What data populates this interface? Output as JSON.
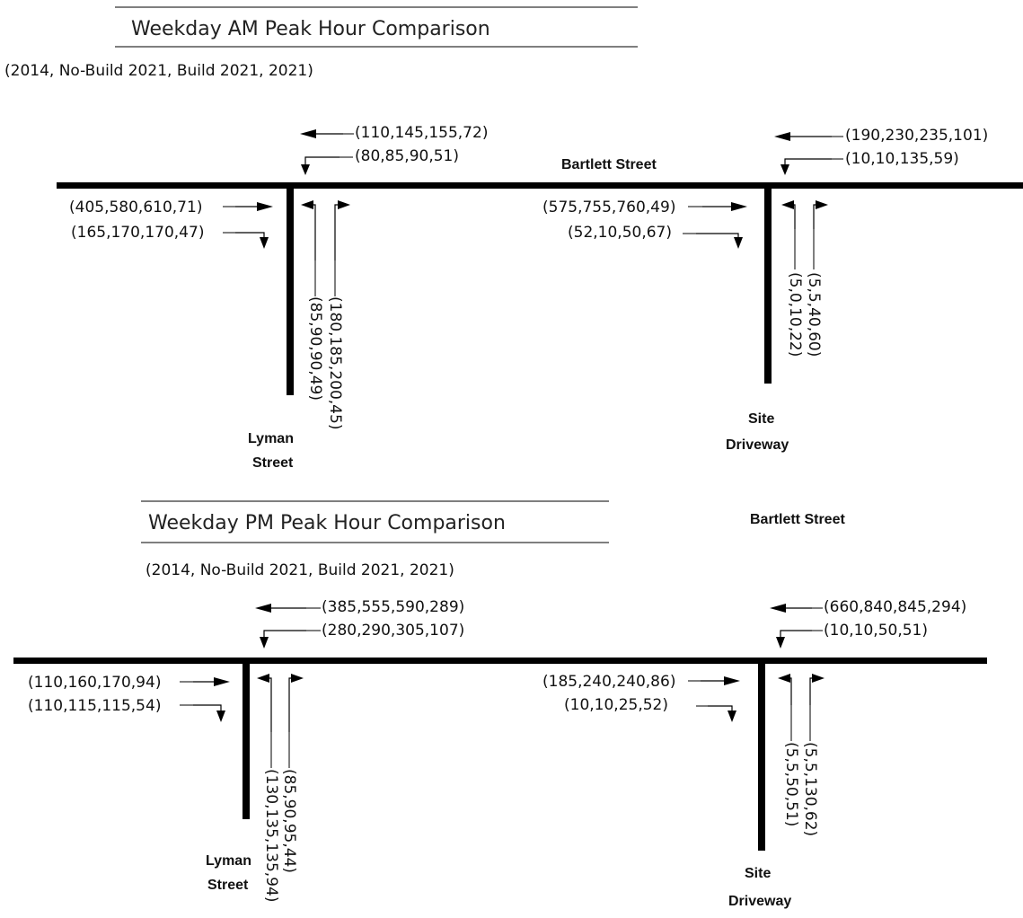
{
  "am": {
    "title": "Weekday AM Peak Hour Comparison",
    "subtitle": "(2014, No-Build 2021, Build 2021, 2021)",
    "main_street": "Bartlett Street",
    "lyman_street": [
      "Lyman",
      "Street"
    ],
    "site_driveway": [
      "Site",
      "Driveway"
    ],
    "lyman": {
      "wb_thru": "(110,145,155,72)",
      "wb_left": "(80,85,90,51)",
      "eb_thru": "(405,580,610,71)",
      "eb_right": "(165,170,170,47)",
      "nb_left": "(85,90,90,49)",
      "nb_right": "(180,185,200,45)"
    },
    "site": {
      "wb_thru": "(190,230,235,101)",
      "wb_left": "(10,10,135,59)",
      "eb_thru": "(575,755,760,49)",
      "eb_right": "(52,10,50,67)",
      "nb_left": "(5,0,10,22)",
      "nb_right": "(5,5,40,60)"
    }
  },
  "pm": {
    "title": "Weekday PM Peak Hour Comparison",
    "subtitle": "(2014, No-Build 2021, Build 2021, 2021)",
    "main_street": "Bartlett Street",
    "lyman_street": [
      "Lyman",
      "Street"
    ],
    "site_driveway": [
      "Site",
      "Driveway"
    ],
    "lyman": {
      "wb_thru": "(385,555,590,289)",
      "wb_left": "(280,290,305,107)",
      "eb_thru": "(110,160,170,94)",
      "eb_right": "(110,115,115,54)",
      "nb_left": "(130,135,135,94)",
      "nb_right": "(85,90,95,44)"
    },
    "site": {
      "wb_thru": "(660,840,845,294)",
      "wb_left": "(10,10,50,51)",
      "eb_thru": "(185,240,240,86)",
      "eb_right": "(10,10,25,52)",
      "nb_left": "(5,5,50,51)",
      "nb_right": "(5,5,130,62)"
    }
  },
  "colors": {
    "road": "#000000",
    "rule": "#7f7f7f"
  }
}
